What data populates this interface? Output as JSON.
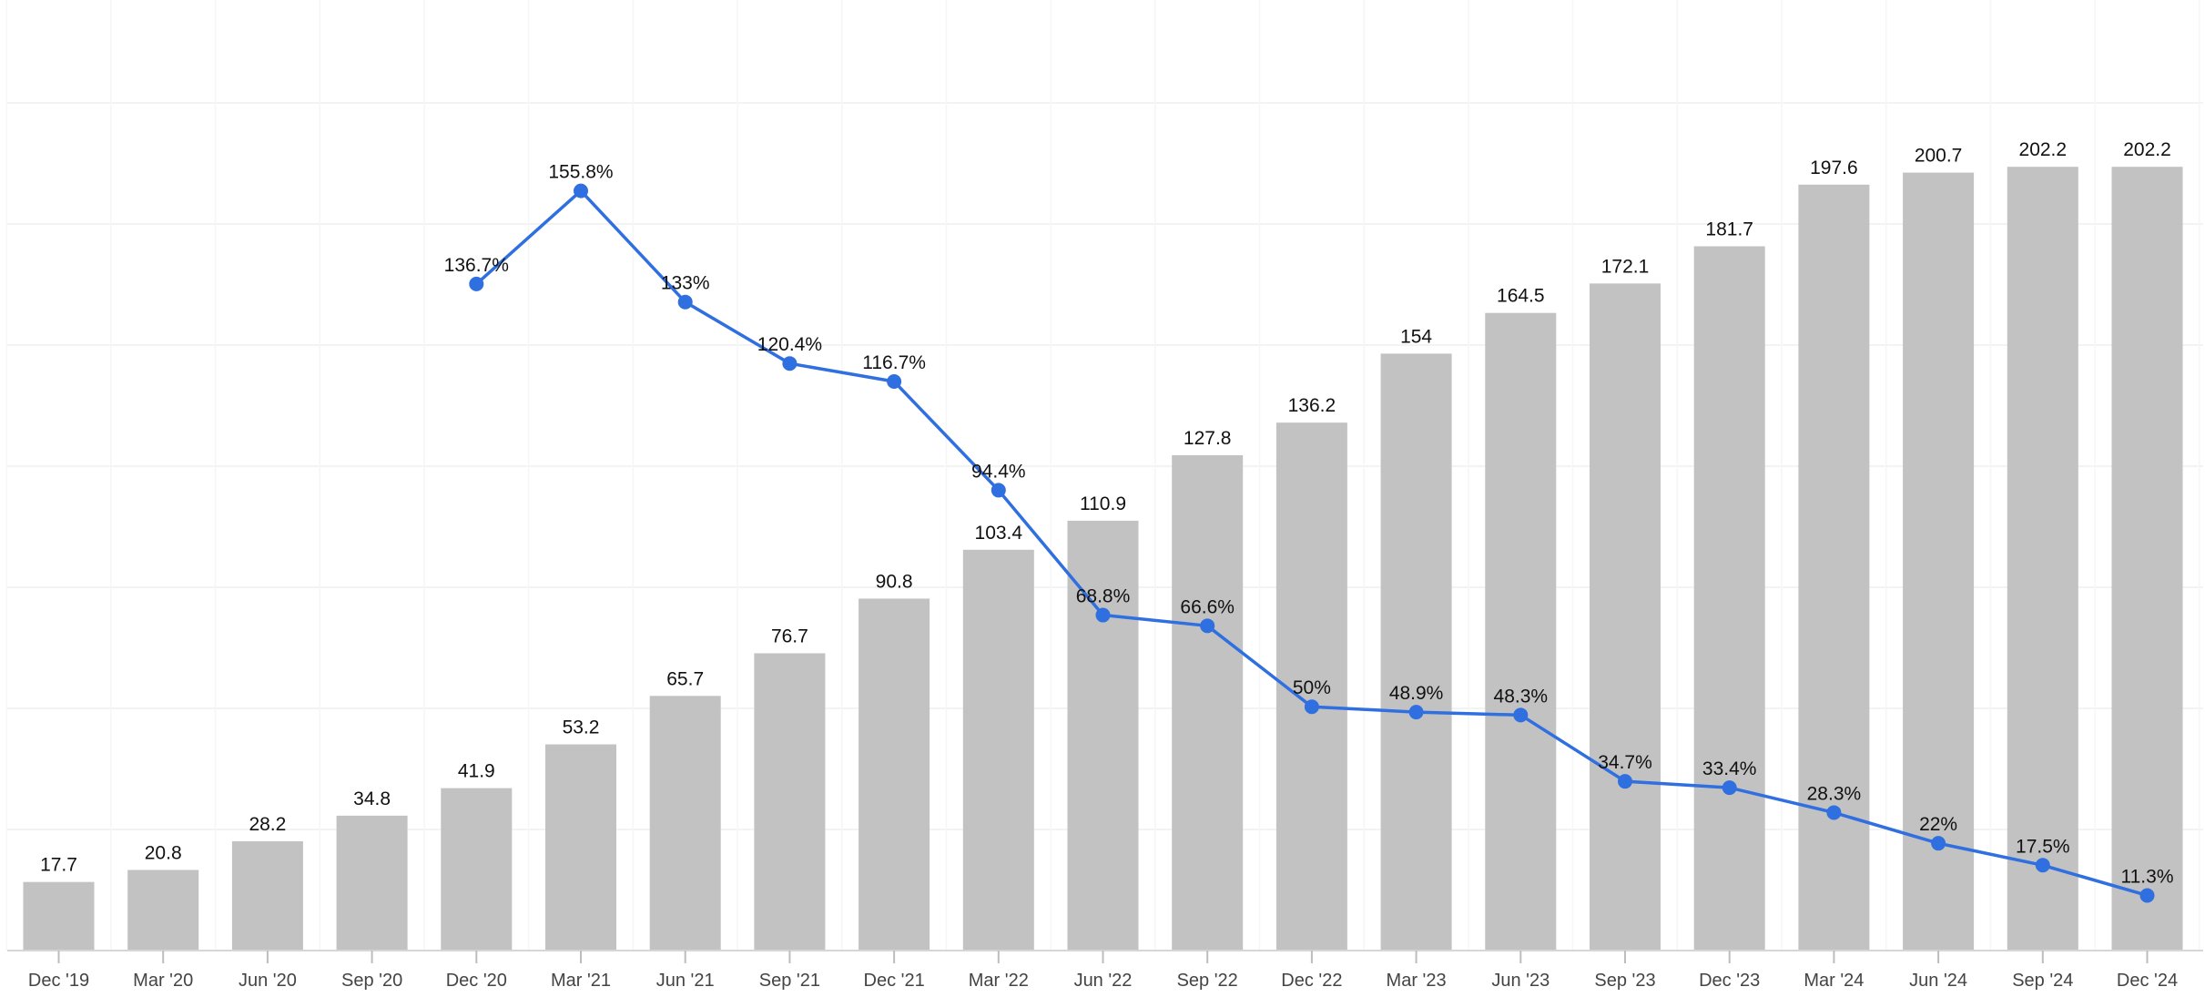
{
  "chart_data": {
    "type": "bar",
    "categories": [
      "Dec '19",
      "Mar '20",
      "Jun '20",
      "Sep '20",
      "Dec '20",
      "Mar '21",
      "Jun '21",
      "Sep '21",
      "Dec '21",
      "Mar '22",
      "Jun '22",
      "Sep '22",
      "Dec '22",
      "Mar '23",
      "Jun '23",
      "Sep '23",
      "Dec '23",
      "Mar '24",
      "Jun '24",
      "Sep '24",
      "Dec '24"
    ],
    "series": [
      {
        "type": "bar",
        "values": [
          17.7,
          20.8,
          28.2,
          34.8,
          41.9,
          53.2,
          65.7,
          76.7,
          90.8,
          103.4,
          110.9,
          127.8,
          136.2,
          154,
          164.5,
          172.1,
          181.7,
          197.6,
          200.7,
          202.2,
          202.2
        ],
        "labels": [
          "17.7",
          "20.8",
          "28.2",
          "34.8",
          "41.9",
          "53.2",
          "65.7",
          "76.7",
          "90.8",
          "103.4",
          "110.9",
          "127.8",
          "136.2",
          "154",
          "164.5",
          "172.1",
          "181.7",
          "197.6",
          "200.7",
          "202.2",
          "202.2"
        ],
        "color": "#c2c2c2"
      },
      {
        "type": "line",
        "values": [
          null,
          null,
          null,
          null,
          136.7,
          155.8,
          133,
          120.4,
          116.7,
          94.4,
          68.8,
          66.6,
          50,
          48.9,
          48.3,
          34.7,
          33.4,
          28.3,
          22,
          17.5,
          11.3
        ],
        "labels": [
          "",
          "",
          "",
          "",
          "136.7%",
          "155.8%",
          "133%",
          "120.4%",
          "116.7%",
          "94.4%",
          "68.8%",
          "66.6%",
          "50%",
          "48.9%",
          "48.3%",
          "34.7%",
          "33.4%",
          "28.3%",
          "22%",
          "17.5%",
          "11.3%"
        ],
        "color": "#2f6fe0"
      }
    ],
    "bar_ylim": [
      0,
      210
    ],
    "line_ylim": [
      0,
      180
    ],
    "grid": true,
    "colors": {
      "bar": "#c2c2c2",
      "line": "#2f6fe0",
      "grid": "#efefef",
      "axis": "#d6d6d6"
    }
  }
}
